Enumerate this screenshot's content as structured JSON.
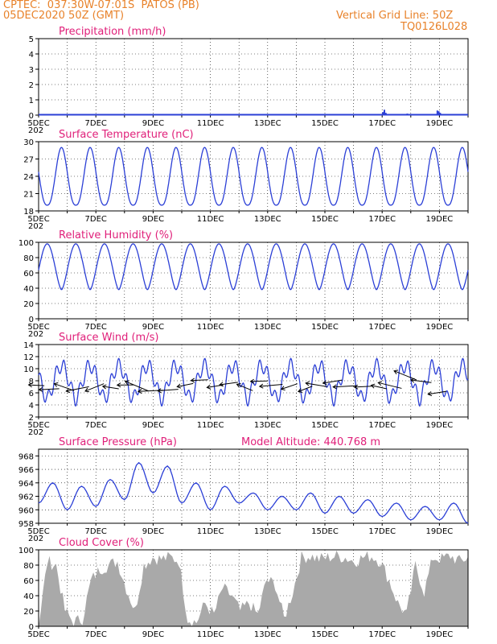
{
  "header": {
    "line1": "CPTEC:  037:30W-07:01S  PATOS (PB)",
    "line2": "05DEC2020 50Z (GMT)",
    "right1": "Vertical Grid Line: 50Z",
    "right2": "TQ0126L028"
  },
  "colors": {
    "header": "#e8822a",
    "title": "#e0207a",
    "line": "#2b3fd6",
    "cloud": "#a9a9a9",
    "arrow": "#000000"
  },
  "x_labels": [
    "5DEC",
    "7DEC",
    "9DEC",
    "11DEC",
    "13DEC",
    "15DEC",
    "17DEC",
    "19DEC"
  ],
  "year_fragment": "202",
  "chart_data": [
    {
      "type": "bar",
      "title": "Precipitation (mm/h)",
      "ylim": [
        0,
        5
      ],
      "yticks": [
        0,
        1,
        2,
        3,
        4,
        5
      ],
      "x_unit": "day since 5DEC 00Z",
      "xlim": [
        0,
        15
      ],
      "values": [
        [
          12.0,
          0.2
        ],
        [
          12.05,
          0.35
        ],
        [
          12.1,
          0.15
        ],
        [
          12.85,
          0.1
        ],
        [
          13.8,
          0.05
        ],
        [
          13.9,
          0.3
        ],
        [
          13.95,
          0.25
        ],
        [
          14.0,
          0.15
        ]
      ]
    },
    {
      "type": "line",
      "title": "Surface Temperature (nC)",
      "ylim": [
        18,
        30
      ],
      "yticks": [
        18,
        21,
        24,
        27,
        30
      ],
      "daily_min": 19,
      "daily_max": 29
    },
    {
      "type": "line",
      "title": "Relative Humidity (%)",
      "ylim": [
        0,
        100
      ],
      "yticks": [
        0,
        20,
        40,
        60,
        80,
        100
      ],
      "daily_min": 38,
      "daily_max": 98
    },
    {
      "type": "line",
      "title": "Surface Wind (m/s)",
      "ylim": [
        2,
        14
      ],
      "yticks": [
        2,
        4,
        6,
        8,
        10,
        12,
        14
      ],
      "daily_min": 5,
      "daily_max": 10.5
    },
    {
      "type": "line",
      "title": "Surface Pressure (hPa)",
      "subtitle": "Model Altitude: 440.768  m",
      "ylim": [
        958,
        969
      ],
      "yticks": [
        958,
        960,
        962,
        964,
        966,
        968
      ],
      "values": [
        961,
        964,
        960,
        963.5,
        960.5,
        964.5,
        961.5,
        967,
        962.5,
        966.5,
        961,
        964,
        960,
        963.5,
        961,
        962.5,
        960,
        962,
        960,
        962.5,
        959.5,
        962,
        959.5,
        961.5,
        959,
        961,
        958.5,
        960.5,
        958.5,
        961,
        958
      ]
    },
    {
      "type": "area",
      "title": "Cloud Cover (%)",
      "ylim": [
        0,
        100
      ],
      "yticks": [
        0,
        20,
        40,
        60,
        80,
        100
      ],
      "values": [
        0,
        85,
        80,
        20,
        5,
        10,
        60,
        75,
        80,
        85,
        50,
        20,
        80,
        90,
        88,
        90,
        86,
        10,
        5,
        30,
        15,
        50,
        40,
        20,
        30,
        15,
        60,
        55,
        10,
        45,
        90,
        92,
        88,
        90,
        92,
        90,
        85,
        90,
        92,
        85,
        60,
        30,
        15,
        80,
        45,
        90,
        88,
        92,
        85,
        90
      ]
    }
  ]
}
